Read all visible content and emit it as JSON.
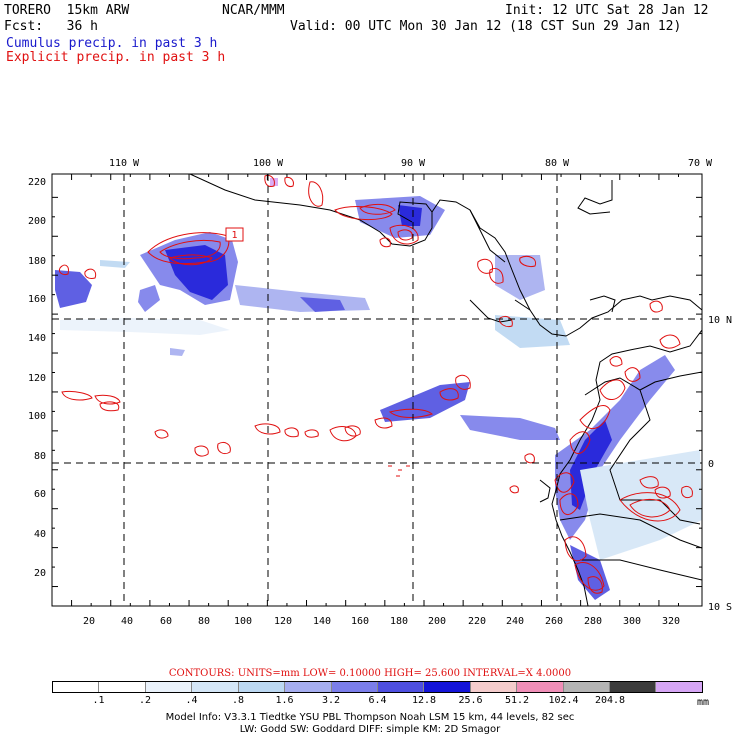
{
  "header": {
    "model": "TORERO  15km ARW",
    "org": "NCAR/MMM",
    "init": "Init: 12 UTC Sat 28 Jan 12",
    "fcst": "Fcst:   36 h",
    "valid": "Valid: 00 UTC Mon 30 Jan 12 (18 CST Sun 29 Jan 12)",
    "legend_cumulus": "Cumulus precip. in past 3 h",
    "legend_explicit": "Explicit precip. in past 3 h"
  },
  "map": {
    "lon_labels": [
      "110 W",
      "100 W",
      "90 W",
      "80 W",
      "70 W"
    ],
    "lat_labels": [
      "10 N",
      "0",
      "10 S"
    ],
    "y_ticks": [
      "220",
      "200",
      "180",
      "160",
      "140",
      "120",
      "100",
      "80",
      "60",
      "40",
      "20"
    ],
    "x_ticks": [
      "20",
      "40",
      "60",
      "80",
      "100",
      "120",
      "140",
      "160",
      "180",
      "200",
      "220",
      "240",
      "260",
      "280",
      "300",
      "320"
    ],
    "contour_label": "1",
    "colors": {
      "coast": "#000000",
      "explicit": "#e01010",
      "cumulus": "#1a1adc"
    }
  },
  "contours_line": "CONTOURS:  UNITS=mm  LOW= 0.10000      HIGH=  25.600      INTERVAL=X  4.0000",
  "colorbar": {
    "colors": [
      "#ffffff",
      "#ffffff",
      "#eaf2fb",
      "#d4e6f7",
      "#bcd8f2",
      "#a6aef0",
      "#7b7eea",
      "#4e4fe0",
      "#1414d8",
      "#f4cccc",
      "#f08fb8",
      "#b4b4b4",
      "#3c3c3c",
      "#d6a6f5"
    ],
    "ticks": [
      ".1",
      ".2",
      ".4",
      ".8",
      "1.6",
      "3.2",
      "6.4",
      "12.8",
      "25.6",
      "51.2",
      "102.4",
      "204.8"
    ],
    "unit": "mm"
  },
  "model_info": {
    "line1": "Model Info: V3.3.1    Tiedtke YSU PBL   Thompson     Noah LSM  15 km,    44 levels,    82 sec",
    "line2": "LW: Godd SW: Goddard DIFF: simple KM: 2D Smagor"
  }
}
